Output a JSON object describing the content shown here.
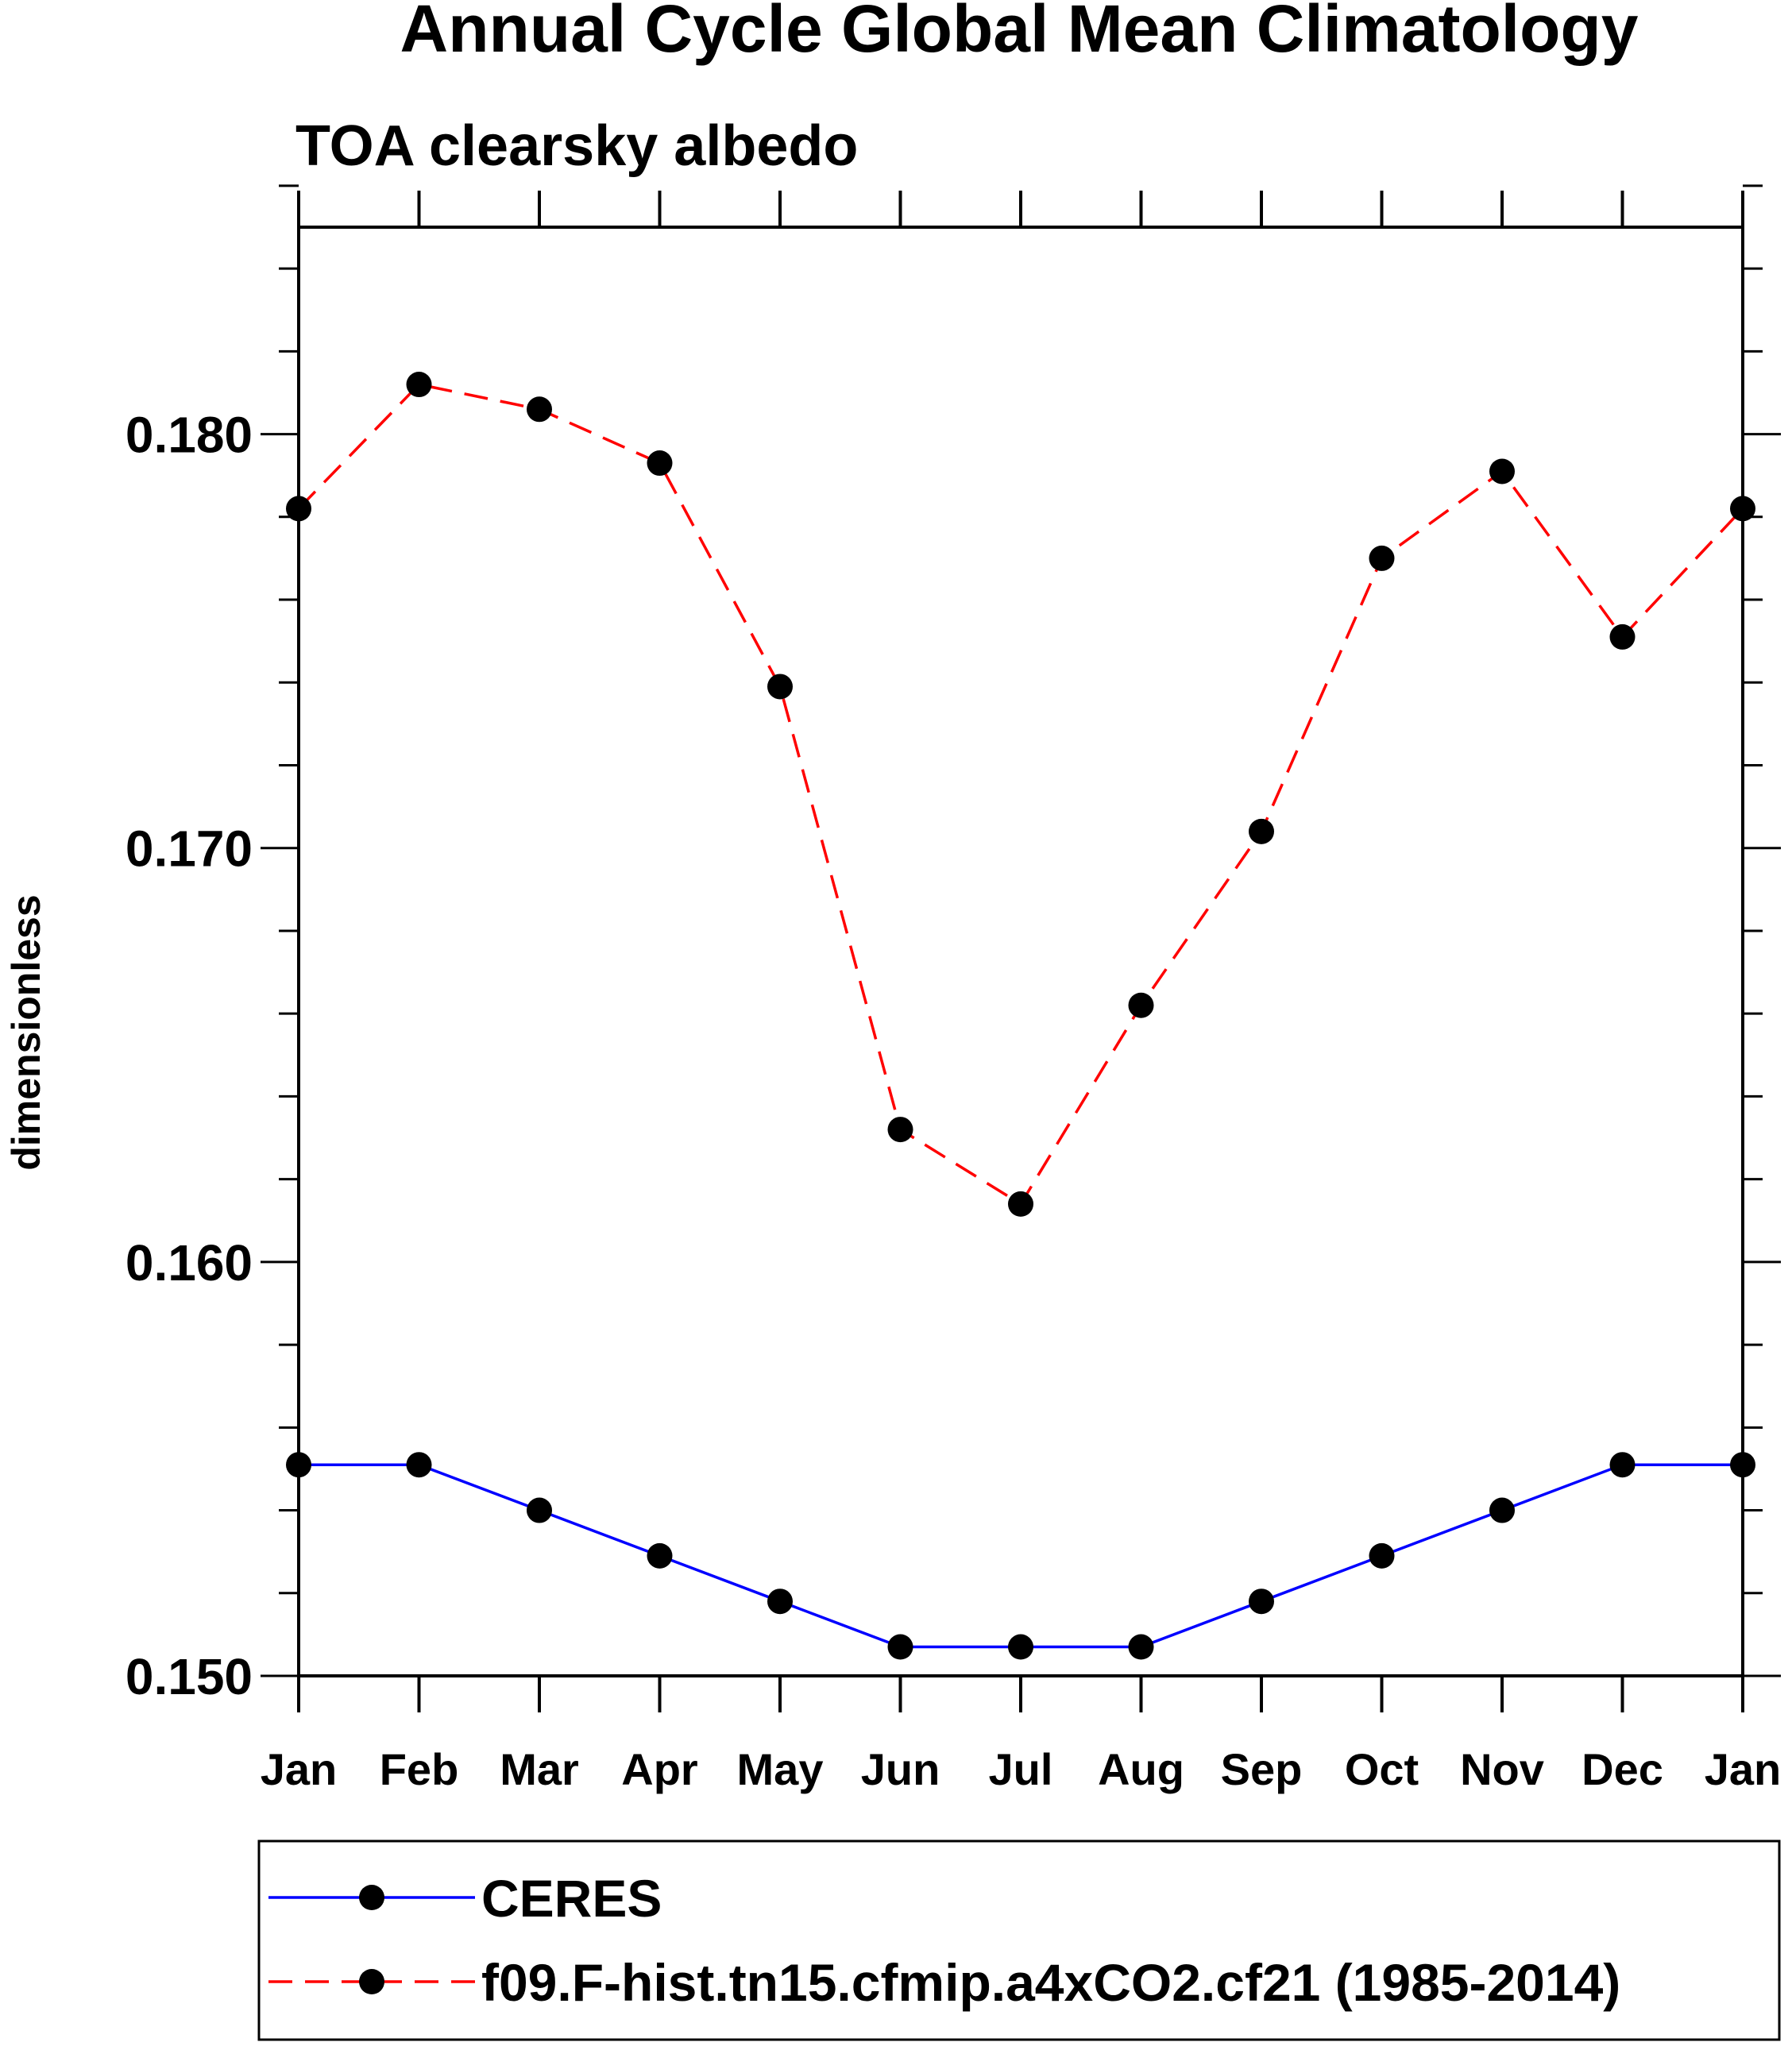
{
  "chart_data": {
    "type": "line",
    "title": "Annual Cycle Global Mean Climatology",
    "subtitle": "TOA clearsky albedo",
    "xlabel": "",
    "ylabel": "dimensionless",
    "categories": [
      "Jan",
      "Feb",
      "Mar",
      "Apr",
      "May",
      "Jun",
      "Jul",
      "Aug",
      "Sep",
      "Oct",
      "Nov",
      "Dec",
      "Jan"
    ],
    "ylim": [
      0.15,
      0.185
    ],
    "yticks_major": [
      0.15,
      0.16,
      0.17,
      0.18
    ],
    "ytick_labels": [
      "0.150",
      "0.160",
      "0.170",
      "0.180"
    ],
    "ytick_minor_step": 0.002,
    "grid": false,
    "legend_position": "bottom",
    "series": [
      {
        "name": "CERES",
        "color": "#0000ff",
        "line_style": "solid",
        "marker": "filled-circle",
        "values": [
          0.1551,
          0.1551,
          0.154,
          0.1529,
          0.1518,
          0.1507,
          0.1507,
          0.1507,
          0.1518,
          0.1529,
          0.154,
          0.1551,
          0.1551
        ]
      },
      {
        "name": "f09.F-hist.tn15.cfmip.a4xCO2.cf21 (1985-2014)",
        "color": "#ff0000",
        "line_style": "dashed",
        "marker": "filled-circle",
        "values": [
          0.1782,
          0.1812,
          0.1806,
          0.1793,
          0.1739,
          0.1632,
          0.1614,
          0.1662,
          0.1704,
          0.177,
          0.1791,
          0.1751,
          0.1782
        ]
      }
    ]
  }
}
